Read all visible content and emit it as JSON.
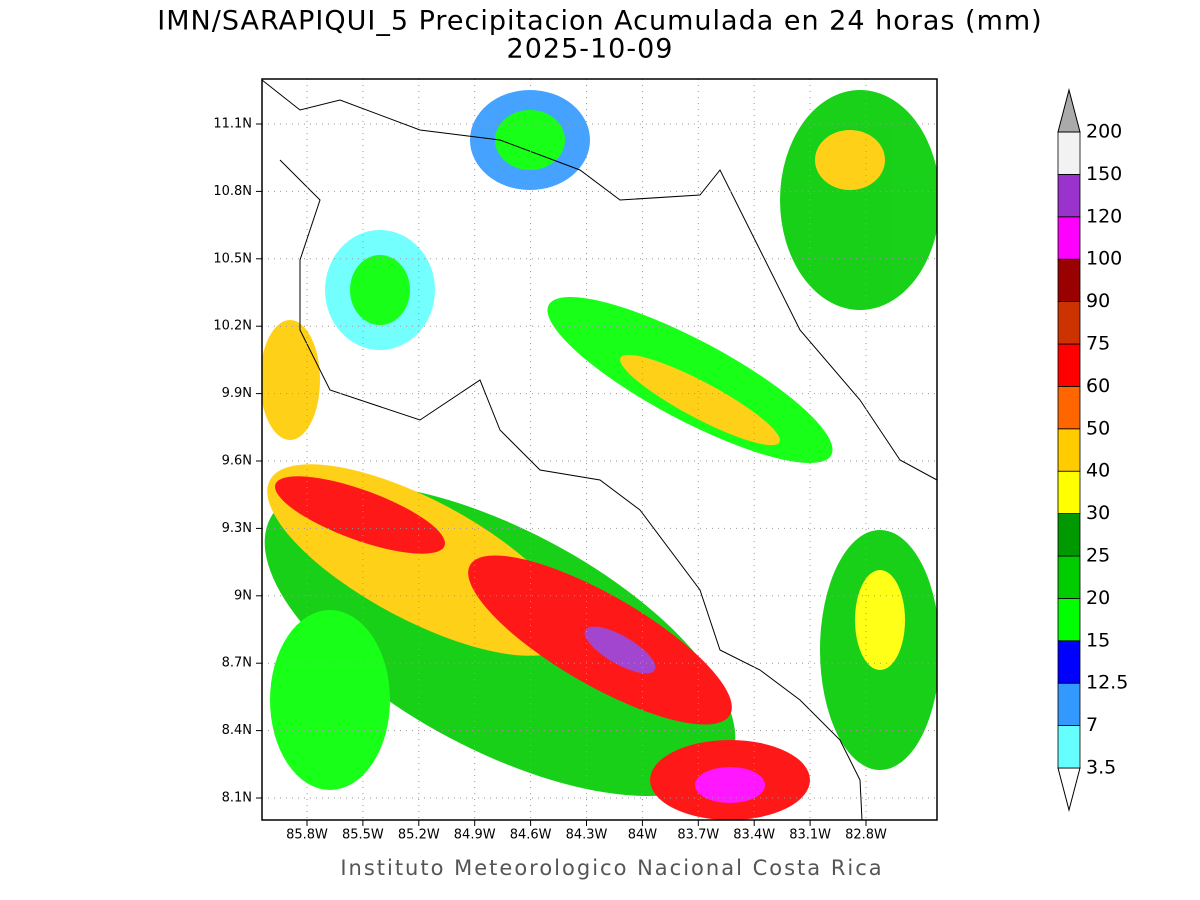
{
  "title": "IMN/SARAPIQUI_5 Precipitacion Acumulada en 24 horas (mm)",
  "date": "2025-10-09",
  "footer": "Instituto Meteorologico Nacional Costa Rica",
  "map": {
    "lon_labels": [
      "85.8W",
      "85.5W",
      "85.2W",
      "84.9W",
      "84.6W",
      "84.3W",
      "84W",
      "83.7W",
      "83.4W",
      "83.1W",
      "82.8W"
    ],
    "lat_labels": [
      "11.1N",
      "10.8N",
      "10.5N",
      "10.2N",
      "9.9N",
      "9.6N",
      "9.3N",
      "9N",
      "8.7N",
      "8.4N",
      "8.1N"
    ]
  },
  "colorbar": {
    "levels": [
      3.5,
      7,
      12.5,
      15,
      20,
      25,
      30,
      40,
      50,
      60,
      75,
      90,
      100,
      120,
      150,
      200
    ],
    "colors": [
      "#ffffff",
      "#66ffff",
      "#3399ff",
      "#0000ff",
      "#00ff00",
      "#00cc00",
      "#009900",
      "#ffff00",
      "#ffcc00",
      "#ff6600",
      "#ff0000",
      "#cc3300",
      "#990000",
      "#ff00ff",
      "#9933cc",
      "#f2f2f2",
      "#aaaaaa"
    ]
  }
}
